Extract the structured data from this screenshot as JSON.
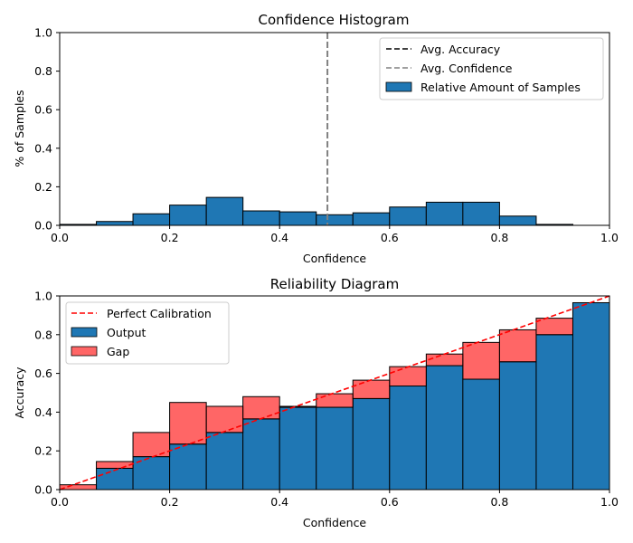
{
  "chart_data": [
    {
      "type": "bar",
      "title": "Confidence Histogram",
      "xlabel": "Confidence",
      "ylabel": "% of Samples",
      "xlim": [
        0,
        1
      ],
      "ylim": [
        0,
        1
      ],
      "xticks": [
        "0.0",
        "0.2",
        "0.4",
        "0.6",
        "0.8",
        "1.0"
      ],
      "yticks": [
        "0.0",
        "0.2",
        "0.4",
        "0.6",
        "0.8",
        "1.0"
      ],
      "bin_width": 0.0667,
      "bin_starts": [
        0.0,
        0.0667,
        0.1333,
        0.2,
        0.2667,
        0.3333,
        0.4,
        0.4667,
        0.5333,
        0.6,
        0.6667,
        0.7333,
        0.8,
        0.8667,
        0.9333
      ],
      "series": [
        {
          "name": "Relative Amount of Samples",
          "color": "#1f77b4",
          "values": [
            0.005,
            0.02,
            0.06,
            0.105,
            0.145,
            0.075,
            0.07,
            0.055,
            0.065,
            0.095,
            0.12,
            0.12,
            0.048,
            0.005,
            0.0
          ]
        }
      ],
      "lines": [
        {
          "name": "Avg. Accuracy",
          "x": 0.487,
          "color": "#000000",
          "style": "dashed",
          "visible": false
        },
        {
          "name": "Avg. Confidence",
          "x": 0.487,
          "color": "#808080",
          "style": "dashed"
        }
      ],
      "legend": {
        "position": "top-right",
        "entries": [
          "Avg. Accuracy",
          "Avg. Confidence",
          "Relative Amount of Samples"
        ]
      }
    },
    {
      "type": "bar",
      "title": "Reliability Diagram",
      "xlabel": "Confidence",
      "ylabel": "Accuracy",
      "xlim": [
        0,
        1
      ],
      "ylim": [
        0,
        1
      ],
      "xticks": [
        "0.0",
        "0.2",
        "0.4",
        "0.6",
        "0.8",
        "1.0"
      ],
      "yticks": [
        "0.0",
        "0.2",
        "0.4",
        "0.6",
        "0.8",
        "1.0"
      ],
      "bin_width": 0.0667,
      "bin_starts": [
        0.0,
        0.0667,
        0.1333,
        0.2,
        0.2667,
        0.3333,
        0.4,
        0.4667,
        0.5333,
        0.6,
        0.6667,
        0.7333,
        0.8,
        0.8667,
        0.9333
      ],
      "series": [
        {
          "name": "Output",
          "color": "#1f77b4",
          "values": [
            0.0,
            0.11,
            0.17,
            0.235,
            0.295,
            0.365,
            0.425,
            0.425,
            0.47,
            0.535,
            0.64,
            0.57,
            0.66,
            0.8,
            0.965
          ]
        },
        {
          "name": "Gap",
          "color": "#ff0000",
          "alpha": 0.6,
          "tops": [
            0.025,
            0.145,
            0.295,
            0.45,
            0.43,
            0.48,
            0.43,
            0.495,
            0.565,
            0.635,
            0.7,
            0.76,
            0.825,
            0.885,
            0.965
          ]
        }
      ],
      "lines": [
        {
          "name": "Perfect Calibration",
          "x": [
            0,
            1
          ],
          "y": [
            0,
            1
          ],
          "color": "#ff0000",
          "style": "dashed"
        }
      ],
      "legend": {
        "position": "top-left",
        "entries": [
          "Perfect Calibration",
          "Output",
          "Gap"
        ]
      }
    }
  ]
}
